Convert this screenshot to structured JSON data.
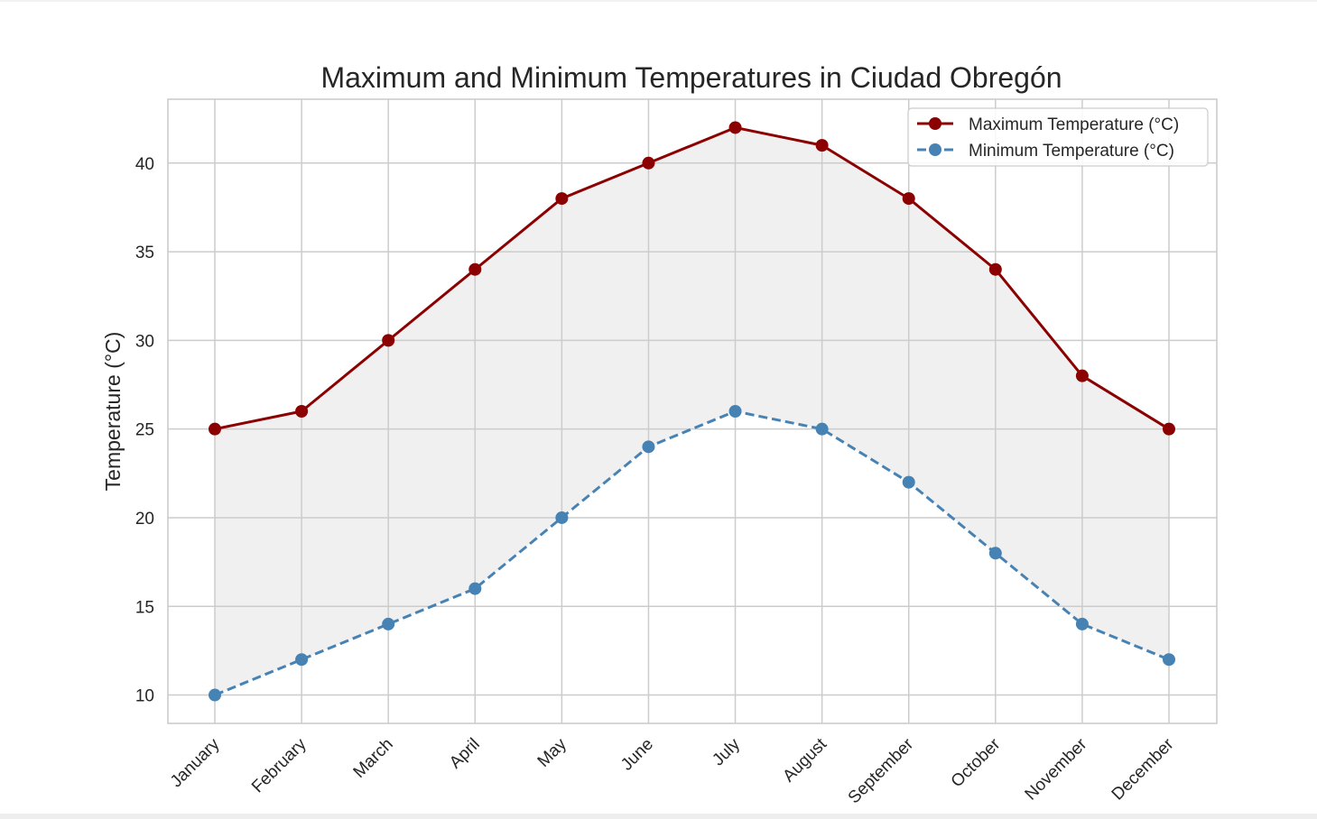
{
  "chart_data": {
    "type": "line",
    "title": "Maximum and Minimum Temperatures in Ciudad Obregón",
    "xlabel": "",
    "ylabel": "Temperature (°C)",
    "categories": [
      "January",
      "February",
      "March",
      "April",
      "May",
      "June",
      "July",
      "August",
      "September",
      "October",
      "November",
      "December"
    ],
    "series": [
      {
        "name": "Maximum Temperature (°C)",
        "values": [
          25,
          26,
          30,
          34,
          38,
          40,
          42,
          41,
          38,
          34,
          28,
          25
        ],
        "color": "#8b0000",
        "linestyle": "solid",
        "marker": "circle"
      },
      {
        "name": "Minimum Temperature (°C)",
        "values": [
          10,
          12,
          14,
          16,
          20,
          24,
          26,
          25,
          22,
          18,
          14,
          12
        ],
        "color": "#4682b4",
        "linestyle": "dashed",
        "marker": "circle"
      }
    ],
    "fill_between": {
      "color": "#f0f0f0",
      "between": [
        "Minimum Temperature (°C)",
        "Maximum Temperature (°C)"
      ]
    },
    "yticks": [
      10,
      15,
      20,
      25,
      30,
      35,
      40
    ],
    "ylim": [
      8.4,
      43.6
    ],
    "grid": true,
    "legend_position": "top-right",
    "xtick_rotation": 45
  }
}
